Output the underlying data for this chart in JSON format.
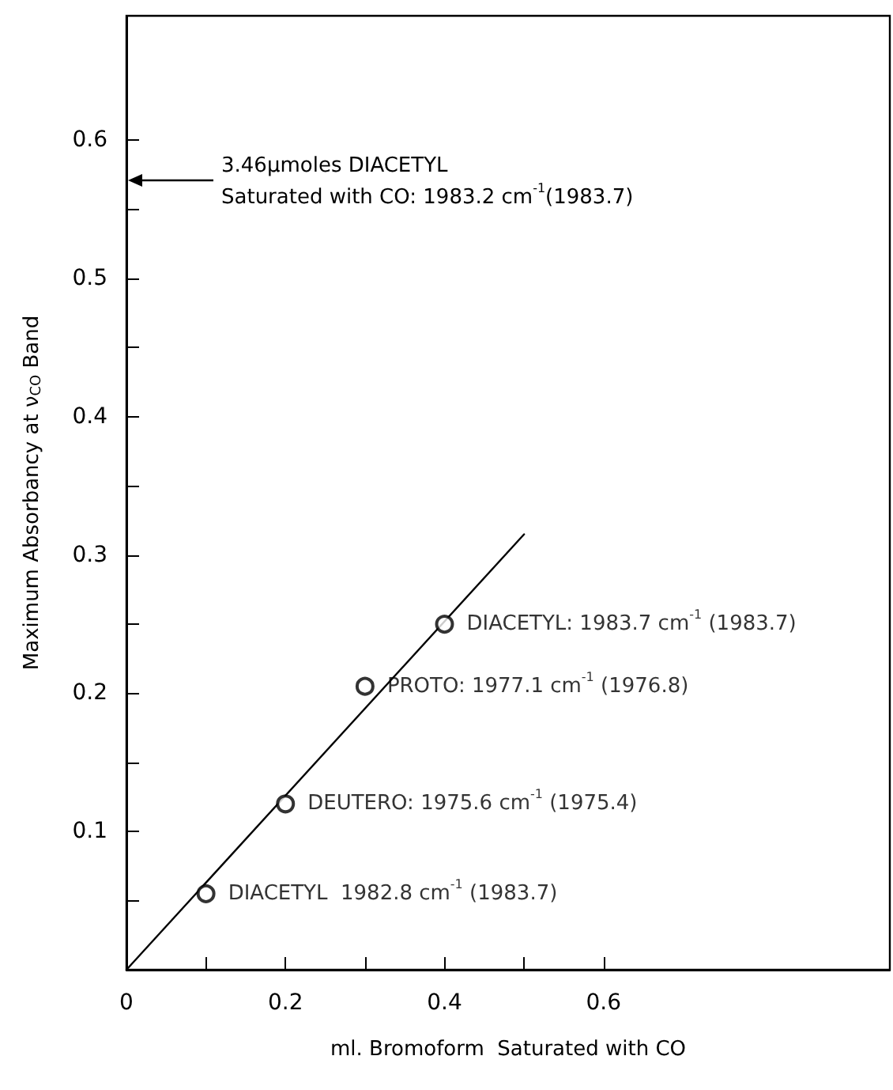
{
  "chart_data": {
    "type": "scatter",
    "xlabel": "ml. Bromoform  Saturated with CO",
    "ylabel": "Maximum Absorbancy at ν$_{CO}$ Band",
    "x": [
      0.1,
      0.2,
      0.3,
      0.4
    ],
    "series": [
      {
        "color": "#000000",
        "marker": "circle",
        "values": [
          0.055,
          0.12,
          0.205,
          0.25
        ]
      },
      {
        "type": "line",
        "color": "#000000",
        "marker": "none",
        "line_style": "solid",
        "x": [
          0,
          0.5
        ],
        "values": [
          0,
          0.315
        ]
      }
    ],
    "annotations": [
      "3.46μmoles DIACETYL\nSaturated with CO: 1983.2 cm$^{-1}$(1983.7)",
      {
        "text": "DIACETYL  1982.8 cm$^{-1}$ (1983.7)",
        "x": 0.1,
        "y": 0.055
      },
      {
        "text": "DEUTERO: 1975.6 cm$^{-1}$ (1975.4)",
        "x": 0.2,
        "y": 0.12
      },
      {
        "text": "PROTO: 1977.1 cm$^{-1}$ (1976.8)",
        "x": 0.3,
        "y": 0.205
      },
      {
        "text": "DIACETYL: 1983.7 cm$^{-1}$ (1983.7)",
        "x": 0.4,
        "y": 0.25
      }
    ],
    "xlim": [
      0,
      0.96
    ],
    "xticks": [
      0,
      {
        "value": 0.1,
        "label": null
      },
      0.2,
      {
        "value": 0.3,
        "label": null
      },
      0.4,
      {
        "value": 0.5,
        "label": null
      },
      0.6
    ],
    "ylim": [
      0,
      0.69
    ],
    "yticks": [
      {
        "value": 0,
        "label": null
      },
      {
        "value": 0.05,
        "label": null
      },
      0.1,
      {
        "value": 0.15,
        "label": null
      },
      0.2,
      {
        "value": 0.25,
        "label": null
      },
      0.3,
      {
        "value": 0.35,
        "label": null
      },
      0.4,
      {
        "value": 0.45,
        "label": null
      },
      0.5,
      {
        "value": 0.55,
        "label": null
      },
      0.6
    ],
    "grid": false
  }
}
